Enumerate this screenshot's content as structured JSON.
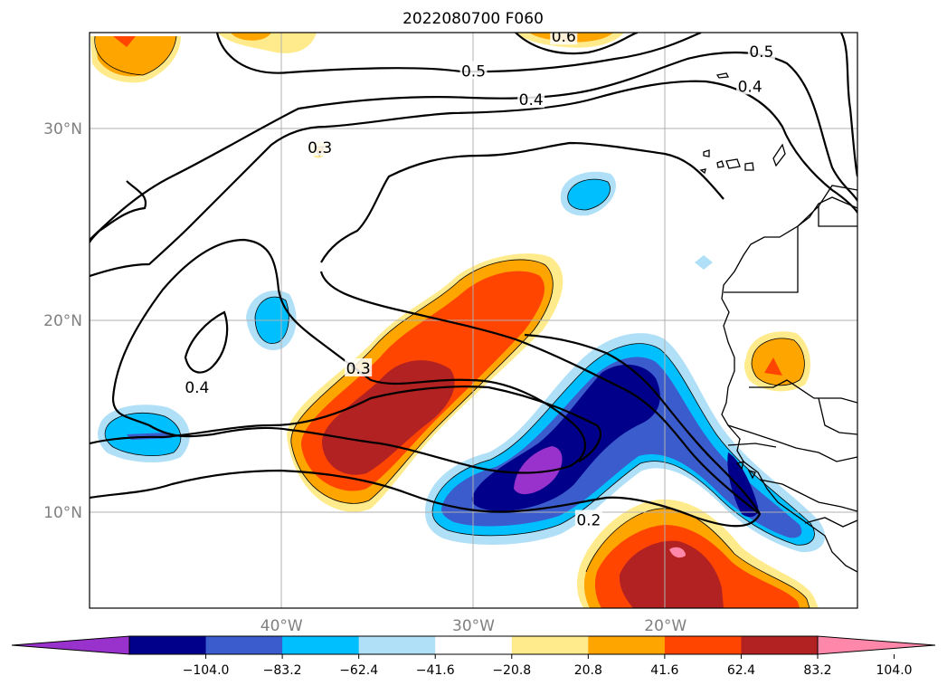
{
  "title": "2022080700 F060",
  "lat_labels": [
    {
      "value": 30,
      "label": "30°N"
    },
    {
      "value": 20,
      "label": "20°N"
    },
    {
      "value": 10,
      "label": "10°N"
    }
  ],
  "lon_labels": [
    {
      "value": -40,
      "label": "40°W"
    },
    {
      "value": -30,
      "label": "30°W"
    },
    {
      "value": -20,
      "label": "20°W"
    }
  ],
  "colorbar": {
    "colors": [
      "#9932cc",
      "#00008b",
      "#3a5ccc",
      "#00bfff",
      "#b0e0f8",
      "#ffffff",
      "#ffeb8c",
      "#ffa500",
      "#ff4500",
      "#b22222",
      "#ff88aa"
    ],
    "tick_labels": [
      "−104.0",
      "−83.2",
      "−62.4",
      "−41.6",
      "−20.8",
      "20.8",
      "41.6",
      "62.4",
      "83.2",
      "104.0"
    ],
    "extend": "both"
  },
  "contour_labels": [
    {
      "text": "0.6",
      "lon": -25.3,
      "lat": 34.8
    },
    {
      "text": "0.5",
      "lon": -30.0,
      "lat": 33.0
    },
    {
      "text": "0.4",
      "lon": -27.0,
      "lat": 31.5
    },
    {
      "text": "0.3",
      "lon": -38.0,
      "lat": 29.0
    },
    {
      "text": "0.4",
      "lon": -15.6,
      "lat": 32.2
    },
    {
      "text": "0.5",
      "lon": -15.0,
      "lat": 34.0
    },
    {
      "text": "0.4",
      "lon": -44.4,
      "lat": 16.5
    },
    {
      "text": "0.3",
      "lon": -36.0,
      "lat": 17.5
    },
    {
      "text": "0.2",
      "lon": -24.0,
      "lat": 9.6
    }
  ],
  "map": {
    "lon_range": [
      -50,
      -10
    ],
    "lat_range": [
      5,
      35
    ],
    "gridlines": true
  }
}
